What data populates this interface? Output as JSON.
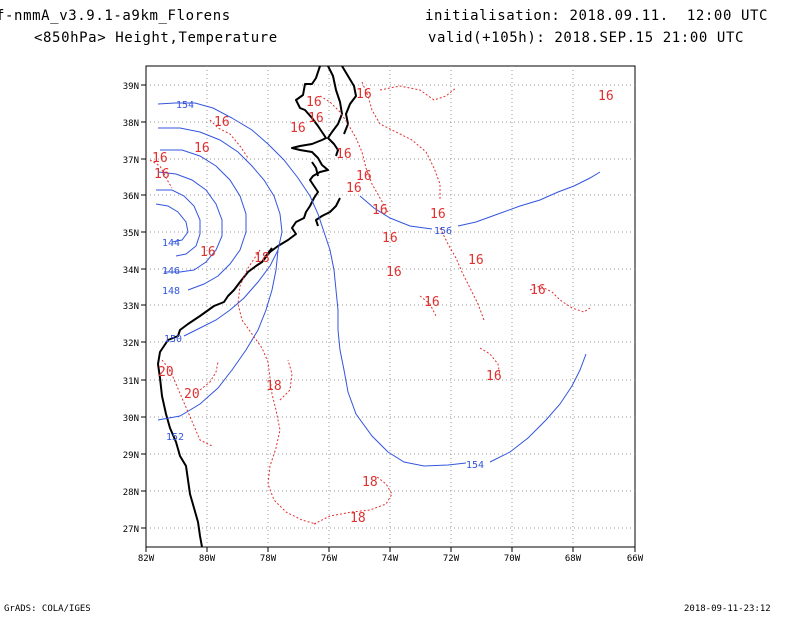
{
  "header": {
    "model": "f-nmmA_v3.9.1-a9km_Florens",
    "level": "<850hPa> Height,Temperature",
    "init": "initialisation: 2018.09.11.  12:00 UTC",
    "valid": "valid(+105h): 2018.SEP.15 21:00 UTC"
  },
  "footer": {
    "left": "GrADS: COLA/IGES",
    "right": "2018-09-11-23:12"
  },
  "map": {
    "lon_ticks": [
      "82W",
      "80W",
      "78W",
      "76W",
      "74W",
      "72W",
      "70W",
      "68W",
      "66W"
    ],
    "lat_ticks": [
      "39N",
      "38N",
      "37N",
      "36N",
      "35N",
      "34N",
      "33N",
      "32N",
      "31N",
      "30N",
      "29N",
      "28N",
      "27N"
    ],
    "height_labels": [
      "154",
      "156",
      "154",
      "144",
      "146",
      "148",
      "150",
      "152"
    ],
    "temp_labels": [
      "16",
      "16",
      "16",
      "16",
      "16",
      "16",
      "16",
      "16",
      "16",
      "16",
      "16",
      "16",
      "16",
      "16",
      "16",
      "16",
      "16",
      "16",
      "16",
      "16",
      "16",
      "18",
      "18",
      "18",
      "18",
      "20",
      "20"
    ],
    "colors": {
      "height": "#3355dd",
      "temperature": "#e03030",
      "grid": "#999999",
      "coast": "#000000"
    }
  }
}
